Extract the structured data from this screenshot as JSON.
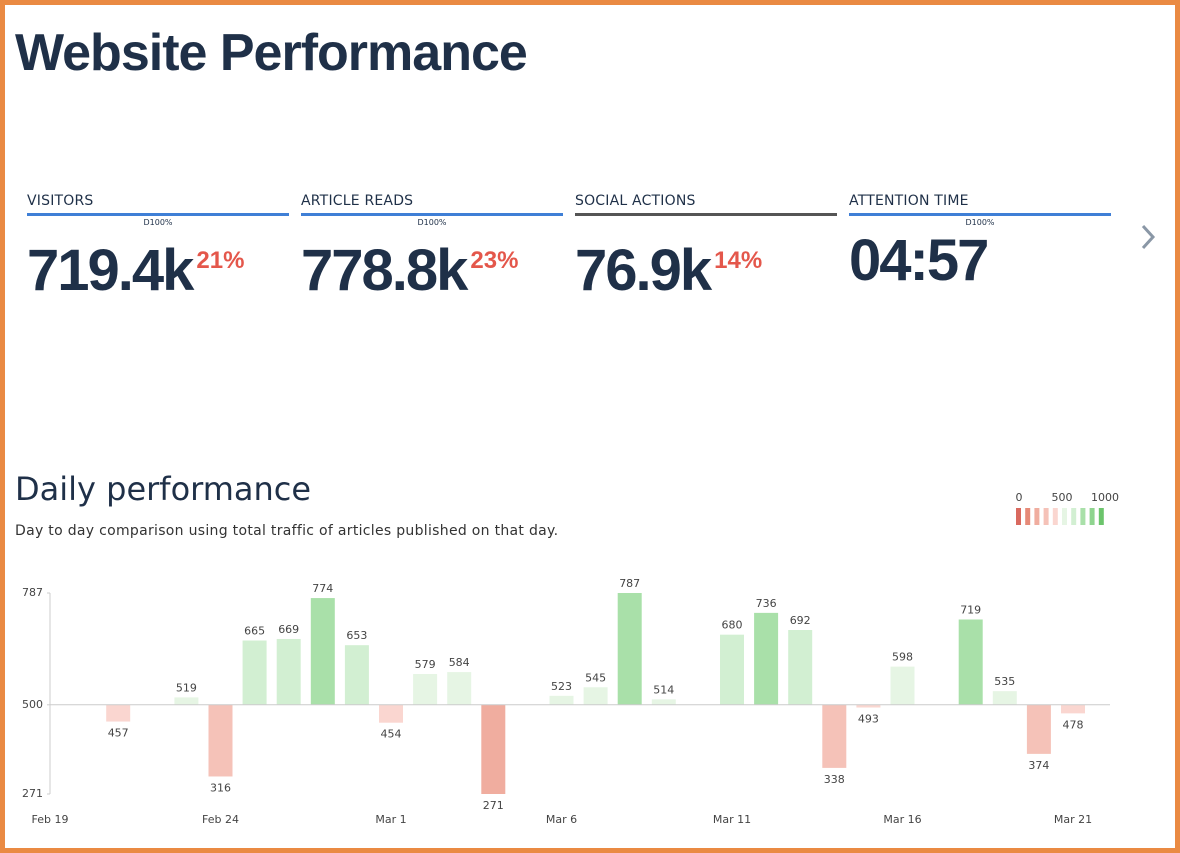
{
  "header": {
    "title": "Website Performance"
  },
  "kpis": [
    {
      "label": "VISITORS",
      "line_color": "#3f7fd6",
      "marker": "D100%",
      "value": "719.4k",
      "change": "21%"
    },
    {
      "label": "ARTICLE READS",
      "line_color": "#3f7fd6",
      "marker": "D100%",
      "value": "778.8k",
      "change": "23%"
    },
    {
      "label": "SOCIAL ACTIONS",
      "line_color": "#555555",
      "value": "76.9k",
      "change": "14%"
    },
    {
      "label": "ATTENTION TIME",
      "line_color": "#3f7fd6",
      "marker": "D100%",
      "value": "04:57"
    }
  ],
  "chart_data": {
    "type": "bar",
    "title": "Daily performance",
    "subtitle": "Day to day comparison using total traffic of articles published on that day.",
    "categories": [
      "Feb 19",
      null,
      null,
      null,
      null,
      "Feb 24",
      null,
      null,
      null,
      null,
      "Mar 1",
      null,
      null,
      null,
      null,
      "Mar 6",
      null,
      null,
      null,
      null,
      "Mar 11",
      null,
      null,
      null,
      null,
      "Mar 16",
      null,
      null,
      null,
      null,
      "Mar 21"
    ],
    "values": [
      null,
      null,
      457,
      null,
      519,
      316,
      665,
      669,
      774,
      653,
      454,
      579,
      584,
      271,
      null,
      523,
      545,
      787,
      514,
      null,
      680,
      736,
      692,
      338,
      493,
      598,
      null,
      719,
      535,
      374,
      478
    ],
    "baseline": 500,
    "ylim": [
      271,
      787
    ],
    "yticks": [
      271,
      500,
      787
    ],
    "color_scale": {
      "labels": [
        0,
        500,
        1000
      ],
      "range": [
        0,
        1000
      ],
      "colors": [
        "#d9695f",
        "#e68a78",
        "#f0ad9f",
        "#f5c2b8",
        "#fad6d0",
        "#e6f5e4",
        "#d2efd2",
        "#a9e0a9",
        "#8fd48f",
        "#6cc46c"
      ]
    }
  }
}
